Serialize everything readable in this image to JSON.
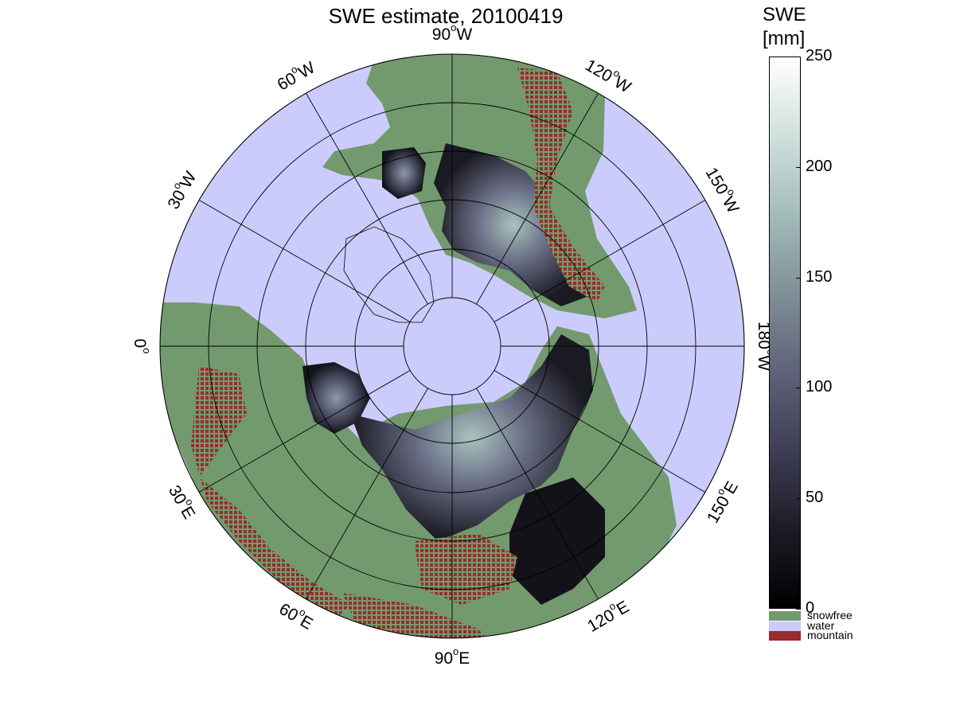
{
  "title": "SWE estimate, 20100419",
  "meridian_labels": [
    {
      "lon": "90",
      "hemi": "W",
      "angle_deg": -90
    },
    {
      "lon": "60",
      "hemi": "W",
      "angle_deg": -120
    },
    {
      "lon": "30",
      "hemi": "W",
      "angle_deg": -150
    },
    {
      "lon": "0",
      "hemi": "",
      "angle_deg": 180
    },
    {
      "lon": "30",
      "hemi": "E",
      "angle_deg": 150
    },
    {
      "lon": "60",
      "hemi": "E",
      "angle_deg": 120
    },
    {
      "lon": "90",
      "hemi": "E",
      "angle_deg": 90
    },
    {
      "lon": "120",
      "hemi": "E",
      "angle_deg": 60
    },
    {
      "lon": "150",
      "hemi": "E",
      "angle_deg": 30
    },
    {
      "lon": "180",
      "hemi": "W",
      "angle_deg": 0
    },
    {
      "lon": "150",
      "hemi": "W",
      "angle_deg": -30
    },
    {
      "lon": "120",
      "hemi": "W",
      "angle_deg": -60
    }
  ],
  "colorbar": {
    "title_line1": "SWE",
    "title_line2": "[mm]",
    "ticks": [
      "250",
      "200",
      "150",
      "100",
      "50",
      "0"
    ],
    "tick_values": [
      250,
      200,
      150,
      100,
      50,
      0
    ],
    "range": [
      0,
      250
    ],
    "colormap_stops": [
      "#000000",
      "#1c1c27",
      "#3e3e55",
      "#5f6278",
      "#7f8f97",
      "#a3bcba",
      "#d0e0dc",
      "#ffffff"
    ]
  },
  "categories": [
    {
      "label": "snowfree",
      "color": "#739a6e"
    },
    {
      "label": "water",
      "color": "#ccccfc"
    },
    {
      "label": "mountain",
      "color": "#9b2b2b"
    }
  ],
  "colors": {
    "ocean": "#ccccfc",
    "land_snowfree": "#739a6e",
    "mountain": "#9b2b2b",
    "swe_dark": "#15151c",
    "swe_mid": "#55586f",
    "swe_high": "#a8c4bd"
  }
}
